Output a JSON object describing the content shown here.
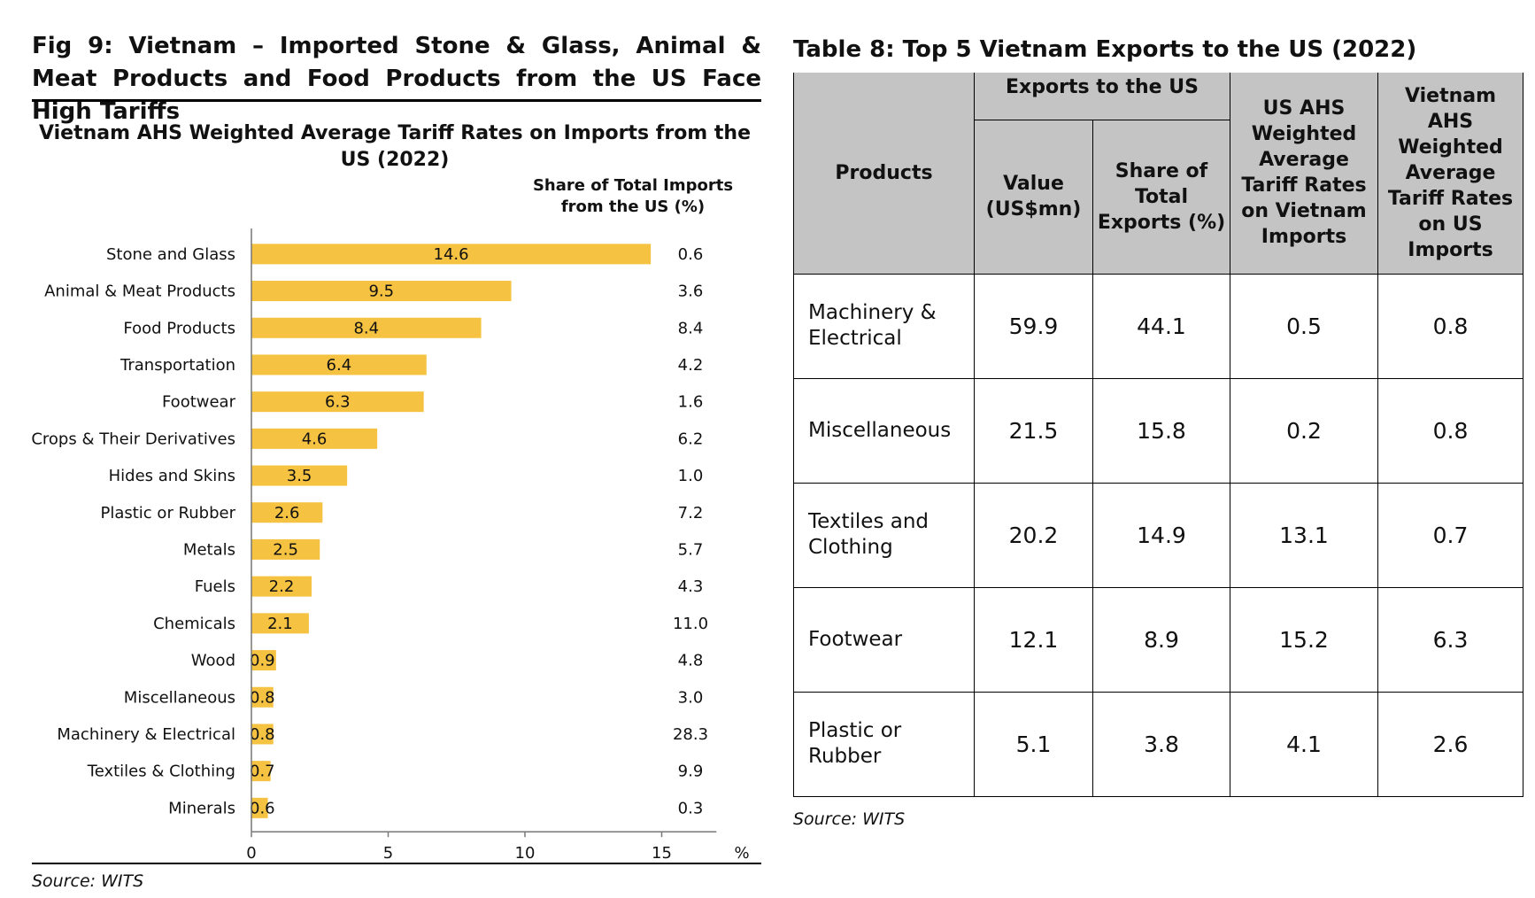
{
  "figure": {
    "title": "Fig 9: Vietnam – Imported Stone & Glass, Animal & Meat Products and Food Products from the US Face High Tariffs",
    "source": "Source: WITS"
  },
  "chart_data": {
    "type": "bar",
    "orientation": "horizontal",
    "title": "Vietnam AHS Weighted Average Tariff Rates on Imports from the US (2022)",
    "side_column_header": "Share of Total Imports from the US (%)",
    "categories": [
      "Stone and Glass",
      "Animal & Meat Products",
      "Food Products",
      "Transportation",
      "Footwear",
      "Crops & Their Derivatives",
      "Hides and Skins",
      "Plastic or Rubber",
      "Metals",
      "Fuels",
      "Chemicals",
      "Wood",
      "Miscellaneous",
      "Machinery & Electrical",
      "Textiles & Clothing",
      "Minerals"
    ],
    "values": [
      14.6,
      9.5,
      8.4,
      6.4,
      6.3,
      4.6,
      3.5,
      2.6,
      2.5,
      2.2,
      2.1,
      0.9,
      0.8,
      0.8,
      0.7,
      0.6
    ],
    "value_labels": [
      "14.6",
      "9.5",
      "8.4",
      "6.4",
      "6.3",
      "4.6",
      "3.5",
      "2.6",
      "2.5",
      "2.2",
      "2.1",
      "0.9",
      "0.8",
      "0.8",
      "0.7",
      "0.6"
    ],
    "share_values": [
      "0.6",
      "3.6",
      "8.4",
      "4.2",
      "1.6",
      "6.2",
      "1.0",
      "7.2",
      "5.7",
      "4.3",
      "11.0",
      "4.8",
      "3.0",
      "28.3",
      "9.9",
      "0.3"
    ],
    "xlim": [
      0,
      17
    ],
    "x_ticks": [
      "0",
      "5",
      "10",
      "15"
    ],
    "x_unit": "%",
    "bar_color": "#f5c242",
    "grid": false
  },
  "table": {
    "title": "Table 8: Top 5 Vietnam Exports to the US (2022)",
    "header_products": "Products",
    "header_group": "Exports to the US",
    "header_value": "Value (US$mn)",
    "header_share": "Share of Total Exports (%)",
    "header_us_tariff": "US AHS Weighted Average Tariff Rates on Vietnam Imports",
    "header_vn_tariff": "Vietnam AHS Weighted Average Tariff Rates on US Imports",
    "rows": [
      {
        "product": "Machinery & Electrical",
        "value": "59.9",
        "share": "44.1",
        "us_tariff": "0.5",
        "vn_tariff": "0.8"
      },
      {
        "product": "Miscellaneous",
        "value": "21.5",
        "share": "15.8",
        "us_tariff": "0.2",
        "vn_tariff": "0.8"
      },
      {
        "product": "Textiles and Clothing",
        "value": "20.2",
        "share": "14.9",
        "us_tariff": "13.1",
        "vn_tariff": "0.7"
      },
      {
        "product": "Footwear",
        "value": "12.1",
        "share": "8.9",
        "us_tariff": "15.2",
        "vn_tariff": "6.3"
      },
      {
        "product": "Plastic or Rubber",
        "value": "5.1",
        "share": "3.8",
        "us_tariff": "4.1",
        "vn_tariff": "2.6"
      }
    ],
    "source": "Source: WITS",
    "header_bg": "#c4c4c4"
  }
}
